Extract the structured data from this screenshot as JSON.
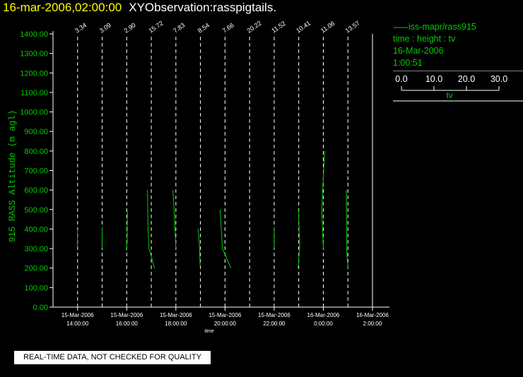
{
  "header": {
    "date_time": "16-mar-2006,02:00:00",
    "observation": "XYObservation:rasspigtails."
  },
  "legend": {
    "series_name": "iss-mapr/rass915",
    "axes_desc": "time : height : tv",
    "date": "16-Mar-2006",
    "time": "1:00:51",
    "scale_ticks": [
      "0.0",
      "10.0",
      "20.0",
      "30.0"
    ],
    "scale_label": "tv"
  },
  "quality_note": "REAL-TIME DATA, NOT CHECKED FOR QUALITY",
  "colors": {
    "series": "#00cc00",
    "title_date": "#ffff00",
    "title_obs": "#ffffff"
  },
  "chart_data": {
    "type": "line",
    "title": "16-mar-2006,02:00:00 XYObservation:rasspigtails.",
    "xlabel": "time",
    "ylabel": "915 RASS Altitude (m agl)",
    "xlim": [
      "2006-03-15 13:00",
      "2006-03-16 02:00"
    ],
    "ylim": [
      0,
      1400
    ],
    "y_ticks": [
      "0.00",
      "100.00",
      "200.00",
      "300.00",
      "400.00",
      "500.00",
      "600.00",
      "700.00",
      "800.00",
      "900.00",
      "1000.00",
      "1100.00",
      "1200.00",
      "1300.00",
      "1400.00"
    ],
    "x_ticks": [
      {
        "t": "2006-03-15 14:00",
        "date": "15-Mar-2006",
        "time": "14:00:00"
      },
      {
        "t": "2006-03-15 16:00",
        "date": "15-Mar-2006",
        "time": "16:00:00"
      },
      {
        "t": "2006-03-15 18:00",
        "date": "15-Mar-2006",
        "time": "18:00:00"
      },
      {
        "t": "2006-03-15 20:00",
        "date": "15-Mar-2006",
        "time": "20:00:00"
      },
      {
        "t": "2006-03-15 22:00",
        "date": "15-Mar-2006",
        "time": "22:00:00"
      },
      {
        "t": "2006-03-16 00:00",
        "date": "16-Mar-2006",
        "time": "0:00:00"
      },
      {
        "t": "2006-03-16 02:00",
        "date": "16-Mar-2006",
        "time": "2:00:00"
      }
    ],
    "series": [
      {
        "name": "iss-mapr/rass915",
        "profiles": [
          {
            "t": "2006-03-15 14:00",
            "label": "3.34",
            "points": [
              [
                0.0,
                400
              ],
              [
                -0.1,
                300
              ]
            ]
          },
          {
            "t": "2006-03-15 15:00",
            "label": "3.09",
            "points": [
              [
                0.0,
                410
              ],
              [
                0.0,
                300
              ]
            ]
          },
          {
            "t": "2006-03-15 16:00",
            "label": "2.90",
            "points": [
              [
                0.2,
                490
              ],
              [
                0.1,
                330
              ],
              [
                -0.1,
                290
              ]
            ]
          },
          {
            "t": "2006-03-15 17:00",
            "label": "15.72",
            "points": [
              [
                -1.2,
                600
              ],
              [
                -1.0,
                400
              ],
              [
                -0.7,
                300
              ],
              [
                1.0,
                200
              ]
            ]
          },
          {
            "t": "2006-03-15 18:00",
            "label": "7.83",
            "points": [
              [
                -0.9,
                600
              ],
              [
                -0.4,
                450
              ],
              [
                0.0,
                300
              ]
            ]
          },
          {
            "t": "2006-03-15 19:00",
            "label": "8.54",
            "points": [
              [
                -0.7,
                400
              ],
              [
                -0.3,
                310
              ],
              [
                -0.1,
                210
              ]
            ]
          },
          {
            "t": "2006-03-15 20:00",
            "label": "7.66",
            "points": [
              [
                -1.5,
                500
              ],
              [
                -0.8,
                300
              ],
              [
                1.8,
                200
              ]
            ]
          },
          {
            "t": "2006-03-15 21:00",
            "label": "20.22",
            "points": []
          },
          {
            "t": "2006-03-15 22:00",
            "label": "11.52",
            "points": [
              [
                0.0,
                410
              ],
              [
                0.0,
                300
              ]
            ]
          },
          {
            "t": "2006-03-15 23:00",
            "label": "10.41",
            "points": [
              [
                -0.1,
                500
              ],
              [
                0.3,
                310
              ],
              [
                -0.2,
                200
              ]
            ]
          },
          {
            "t": "2006-03-16 00:00",
            "label": "11.06",
            "points": [
              [
                0.4,
                800
              ],
              [
                -0.5,
                500
              ],
              [
                0.0,
                300
              ]
            ]
          },
          {
            "t": "2006-03-16 01:00",
            "label": "13.57",
            "points": [
              [
                -0.5,
                600
              ],
              [
                -0.4,
                300
              ],
              [
                0.0,
                200
              ]
            ]
          }
        ]
      }
    ]
  }
}
